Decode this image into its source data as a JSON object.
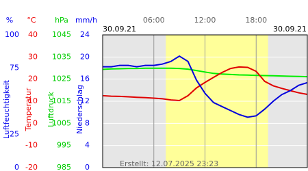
{
  "chart_data": {
    "type": "line",
    "date_left": "30.09.21",
    "date_right": "30.09.21",
    "footer": "Erstellt: 12.07.2025 23:23",
    "x": [
      0,
      1,
      2,
      3,
      4,
      5,
      6,
      7,
      8,
      9,
      10,
      11,
      12,
      13,
      14,
      15,
      16,
      17,
      18,
      19,
      20,
      21,
      22,
      23,
      24
    ],
    "xlim": [
      0,
      24
    ],
    "xticks": [
      {
        "value": 6,
        "label": "06:00"
      },
      {
        "value": 12,
        "label": "12:00"
      },
      {
        "value": 18,
        "label": "18:00"
      }
    ],
    "daylight": [
      7.4,
      19.4
    ],
    "axes": [
      {
        "unit": "%",
        "label": "Luftfeuchtigkeit",
        "color": "#0000ee",
        "ylim": [
          0,
          100
        ],
        "yticks": [
          0,
          25,
          75,
          100
        ]
      },
      {
        "unit": "°C",
        "label": "Temperatur",
        "color": "#ee0000",
        "ylim": [
          -20,
          40
        ],
        "yticks": [
          -20,
          -10,
          0,
          10,
          20,
          30,
          40
        ]
      },
      {
        "unit": "hPa",
        "label": "Luftdruck",
        "color": "#00cc00",
        "ylim": [
          985,
          1045
        ],
        "yticks": [
          985,
          995,
          1005,
          1015,
          1025,
          1035,
          1045
        ]
      },
      {
        "unit": "mm/h",
        "label": "Niederschlag",
        "color": "#0000ee",
        "ylim": [
          0,
          24
        ],
        "yticks": [
          0,
          4,
          8,
          12,
          16,
          20,
          24
        ]
      }
    ],
    "series": [
      {
        "axis": 2,
        "color": "#00ee00",
        "values": [
          1029.4,
          1029.6,
          1029.7,
          1029.8,
          1029.8,
          1029.9,
          1029.9,
          1029.9,
          1029.9,
          1029.8,
          1029.5,
          1028.9,
          1028.2,
          1027.6,
          1027.3,
          1027.1,
          1026.9,
          1026.8,
          1026.7,
          1026.6,
          1026.5,
          1026.4,
          1026.3,
          1026.2,
          1026.1
        ]
      },
      {
        "axis": 1,
        "color": "#e00000",
        "values": [
          12.5,
          12.3,
          12.2,
          12.0,
          11.8,
          11.6,
          11.4,
          11.1,
          10.6,
          10.3,
          12.5,
          16,
          18.5,
          20.8,
          23,
          24.8,
          25.5,
          25.3,
          23.5,
          19,
          17,
          15.8,
          14.8,
          13.8,
          13.1
        ]
      },
      {
        "axis": 0,
        "color": "#0000dd",
        "values": [
          76,
          76,
          77,
          77,
          76,
          77,
          77,
          78,
          80,
          84,
          80,
          66,
          56,
          49,
          46,
          43,
          40,
          38,
          39,
          44,
          50,
          55,
          58,
          62,
          64
        ]
      }
    ]
  }
}
